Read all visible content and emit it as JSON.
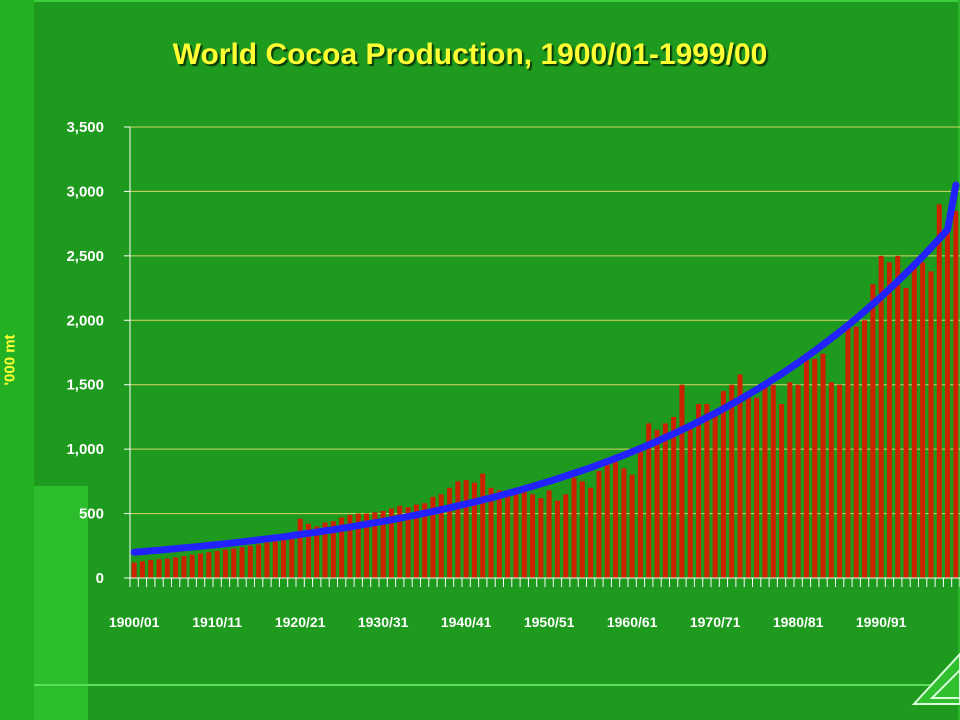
{
  "title": "World Cocoa Production, 1900/01-1999/00",
  "colors": {
    "background": "#1e9a1e",
    "title": "#ffff33",
    "bars": "#cc2200",
    "trend": "#2222ff",
    "grid": "#d6d66a"
  },
  "icons": {
    "corner": "corner-triangle-icon"
  },
  "chart_data": {
    "type": "bar",
    "title": "World Cocoa Production, 1900/01-1999/00",
    "xlabel": "",
    "ylabel": "'000 mt",
    "ylim": [
      0,
      3500
    ],
    "yticks": [
      0,
      500,
      1000,
      1500,
      2000,
      2500,
      3000,
      3500
    ],
    "ytick_labels": [
      "0",
      "500",
      "1,000",
      "1,500",
      "2,000",
      "2,500",
      "3,000",
      "3,500"
    ],
    "xtick_labels": [
      "1900/01",
      "1910/11",
      "1920/21",
      "1930/31",
      "1940/41",
      "1950/51",
      "1960/61",
      "1970/71",
      "1980/81",
      "1990/91"
    ],
    "grid": true,
    "legend": "none",
    "series": [
      {
        "type": "bar",
        "values": [
          120,
          130,
          140,
          145,
          150,
          160,
          170,
          180,
          190,
          200,
          210,
          220,
          230,
          240,
          250,
          260,
          275,
          285,
          300,
          320,
          460,
          420,
          400,
          430,
          440,
          470,
          490,
          500,
          500,
          510,
          520,
          540,
          560,
          550,
          570,
          580,
          630,
          650,
          700,
          750,
          760,
          740,
          810,
          700,
          680,
          650,
          700,
          690,
          650,
          620,
          680,
          600,
          650,
          780,
          750,
          700,
          830,
          880,
          900,
          850,
          800,
          1000,
          1200,
          1150,
          1200,
          1250,
          1500,
          1200,
          1350,
          1350,
          1300,
          1450,
          1500,
          1580,
          1450,
          1400,
          1500,
          1500,
          1350,
          1520,
          1500,
          1690,
          1700,
          1740,
          1520,
          1500,
          1950,
          1950,
          2000,
          2280,
          2500,
          2450,
          2500,
          2250,
          2450,
          2450,
          2380,
          2900,
          2750,
          2850
        ]
      },
      {
        "type": "line",
        "name": "trend",
        "values": [
          200,
          205,
          211,
          216,
          222,
          228,
          234,
          240,
          246,
          253,
          259,
          266,
          273,
          281,
          288,
          296,
          304,
          312,
          320,
          329,
          338,
          347,
          356,
          366,
          375,
          386,
          396,
          407,
          418,
          429,
          440,
          452,
          464,
          477,
          490,
          503,
          517,
          531,
          545,
          560,
          575,
          590,
          606,
          622,
          639,
          657,
          674,
          693,
          711,
          731,
          750,
          771,
          792,
          813,
          835,
          857,
          881,
          904,
          929,
          954,
          980,
          1006,
          1033,
          1061,
          1090,
          1120,
          1150,
          1181,
          1213,
          1246,
          1279,
          1314,
          1350,
          1386,
          1424,
          1462,
          1502,
          1543,
          1584,
          1627,
          1671,
          1717,
          1763,
          1811,
          1860,
          1910,
          1962,
          2015,
          2070,
          2126,
          2183,
          2242,
          2303,
          2366,
          2430,
          2495,
          2563,
          2632,
          2704,
          3050
        ]
      }
    ]
  }
}
